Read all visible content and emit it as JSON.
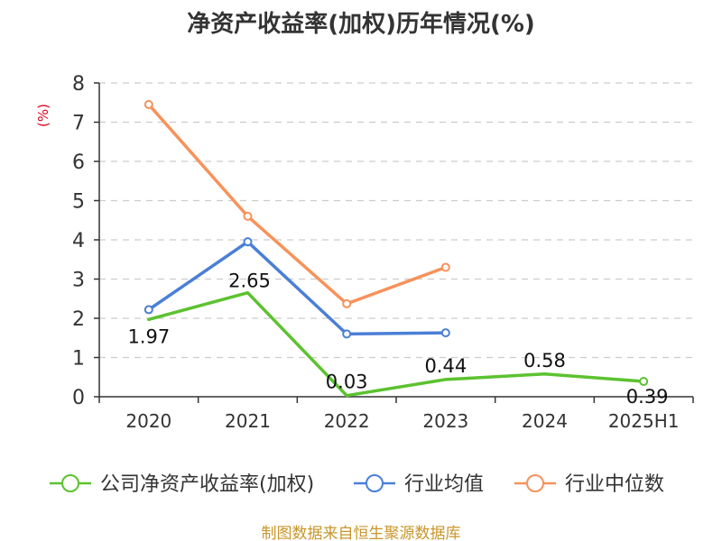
{
  "chart_data": {
    "type": "line",
    "title": "净资产收益率(加权)历年情况(%)",
    "ylabel": "(%)",
    "ylim": [
      0,
      8
    ],
    "yticks": [
      0,
      1,
      2,
      3,
      4,
      5,
      6,
      7,
      8
    ],
    "grid": true,
    "legend_position": "bottom",
    "categories": [
      "2020",
      "2021",
      "2022",
      "2023",
      "2024",
      "2025H1"
    ],
    "series": [
      {
        "name": "公司净资产收益率(加权)",
        "color": "#5cc22f",
        "values": [
          1.97,
          2.65,
          0.03,
          0.44,
          0.58,
          0.39
        ],
        "labels": [
          "1.97",
          "2.65",
          "0.03",
          "0.44",
          "0.58",
          "0.39"
        ],
        "show_markers": [
          false,
          false,
          false,
          false,
          false,
          true
        ]
      },
      {
        "name": "行业均值",
        "color": "#4a7fd6",
        "values": [
          2.22,
          3.95,
          1.6,
          1.63,
          null,
          null
        ],
        "show_markers": [
          true,
          true,
          true,
          true,
          false,
          false
        ]
      },
      {
        "name": "行业中位数",
        "color": "#f7925a",
        "values": [
          7.45,
          4.6,
          2.37,
          3.3,
          null,
          null
        ],
        "show_markers": [
          true,
          true,
          true,
          true,
          false,
          false
        ]
      }
    ],
    "source_note": "制图数据来自恒生聚源数据库"
  }
}
